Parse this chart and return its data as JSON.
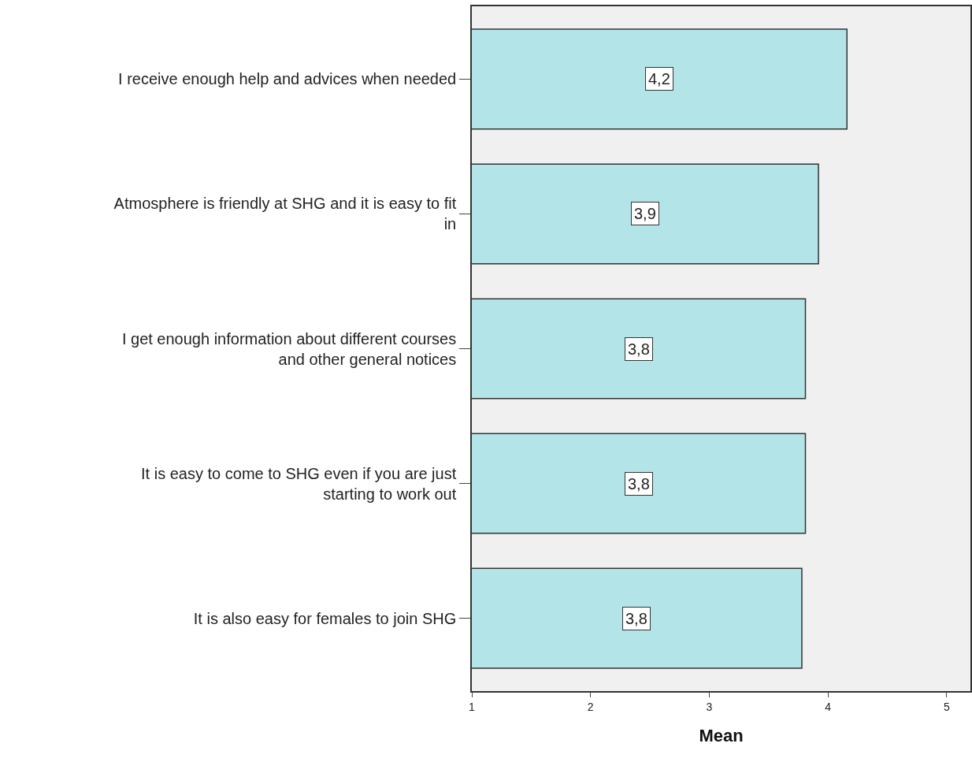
{
  "chart_data": {
    "type": "bar",
    "orientation": "horizontal",
    "xlabel": "Mean",
    "categories": [
      "I receive enough help and advices when needed",
      "Atmosphere is friendly at SHG and it is easy to fit in",
      "I get enough information about different courses and other general notices",
      "It is easy to come to SHG even if you are just starting to work out",
      "It is also easy for females to join SHG"
    ],
    "values": [
      4.16,
      3.92,
      3.81,
      3.81,
      3.78
    ],
    "value_labels": [
      "4,2",
      "3,9",
      "3,8",
      "3,8",
      "3,8"
    ],
    "color": "#b3e5e8",
    "xlim": [
      1,
      5.2
    ],
    "xticks": [
      1,
      2,
      3,
      4,
      5
    ],
    "grid": false
  }
}
